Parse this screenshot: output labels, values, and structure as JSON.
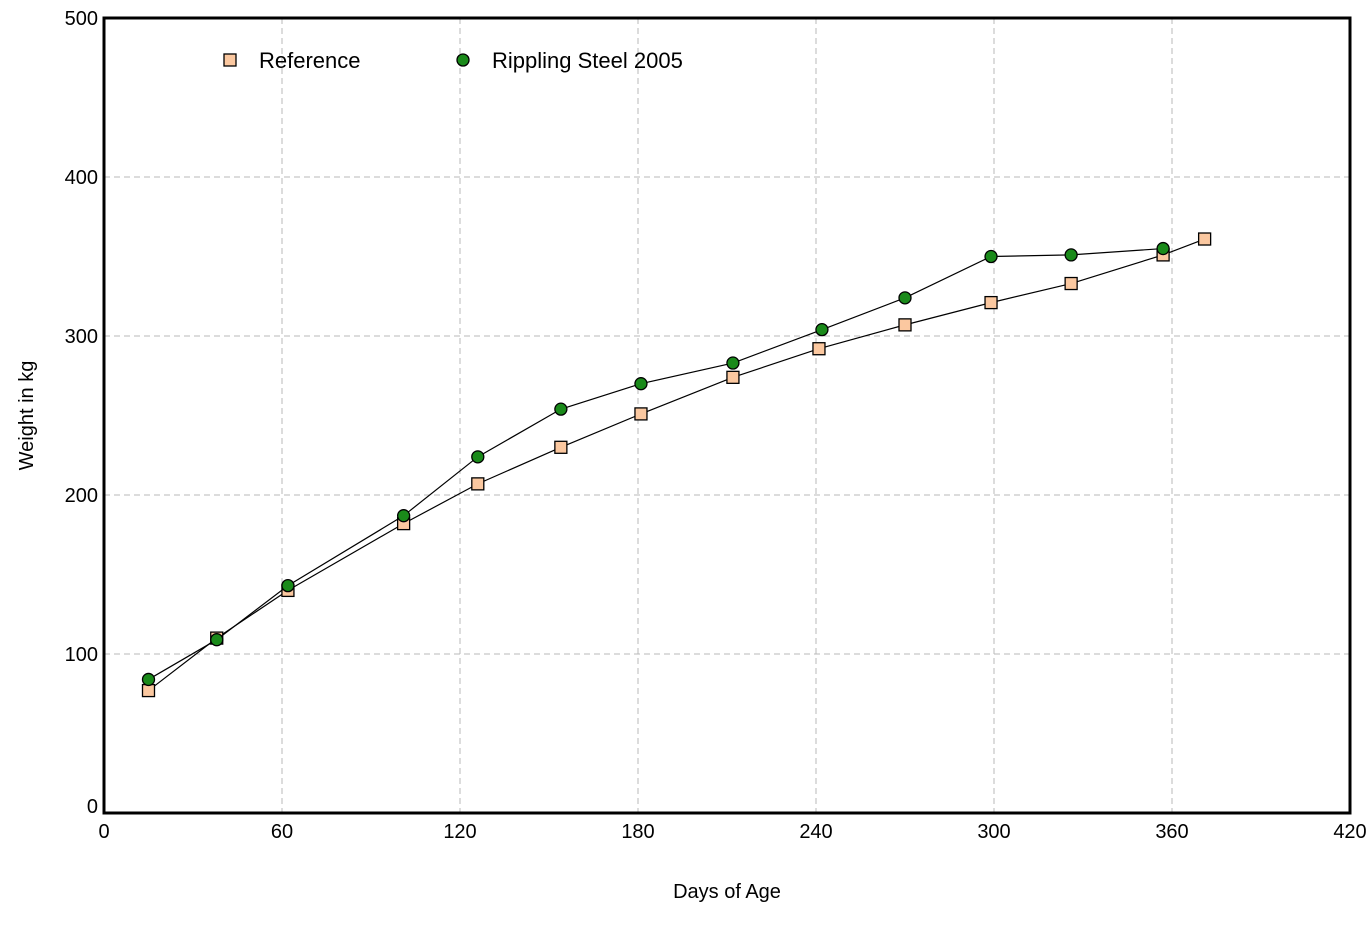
{
  "chart_data": {
    "type": "line",
    "title": "",
    "xlabel": "Days of Age",
    "ylabel": "Weight in kg",
    "xlim": [
      0,
      420
    ],
    "ylim": [
      0,
      500
    ],
    "x_ticks": [
      0,
      60,
      120,
      180,
      240,
      300,
      360,
      420
    ],
    "y_ticks": [
      0,
      100,
      200,
      300,
      400,
      500
    ],
    "grid": true,
    "legend_position": "top-left",
    "series": [
      {
        "name": "Reference",
        "marker": "square",
        "color": "#fbc8a0",
        "points": [
          {
            "x": 15,
            "y": 77
          },
          {
            "x": 38,
            "y": 110
          },
          {
            "x": 62,
            "y": 140
          },
          {
            "x": 101,
            "y": 182
          },
          {
            "x": 126,
            "y": 207
          },
          {
            "x": 154,
            "y": 230
          },
          {
            "x": 181,
            "y": 251
          },
          {
            "x": 212,
            "y": 274
          },
          {
            "x": 241,
            "y": 292
          },
          {
            "x": 270,
            "y": 307
          },
          {
            "x": 299,
            "y": 321
          },
          {
            "x": 326,
            "y": 333
          },
          {
            "x": 357,
            "y": 351
          },
          {
            "x": 371,
            "y": 361
          }
        ]
      },
      {
        "name": "Rippling Steel 2005",
        "marker": "circle",
        "color": "#1a8a1a",
        "points": [
          {
            "x": 15,
            "y": 84
          },
          {
            "x": 38,
            "y": 109
          },
          {
            "x": 62,
            "y": 143
          },
          {
            "x": 101,
            "y": 187
          },
          {
            "x": 126,
            "y": 224
          },
          {
            "x": 154,
            "y": 254
          },
          {
            "x": 181,
            "y": 270
          },
          {
            "x": 212,
            "y": 283
          },
          {
            "x": 242,
            "y": 304
          },
          {
            "x": 270,
            "y": 324
          },
          {
            "x": 299,
            "y": 350
          },
          {
            "x": 326,
            "y": 351
          },
          {
            "x": 357,
            "y": 355
          }
        ]
      }
    ]
  }
}
